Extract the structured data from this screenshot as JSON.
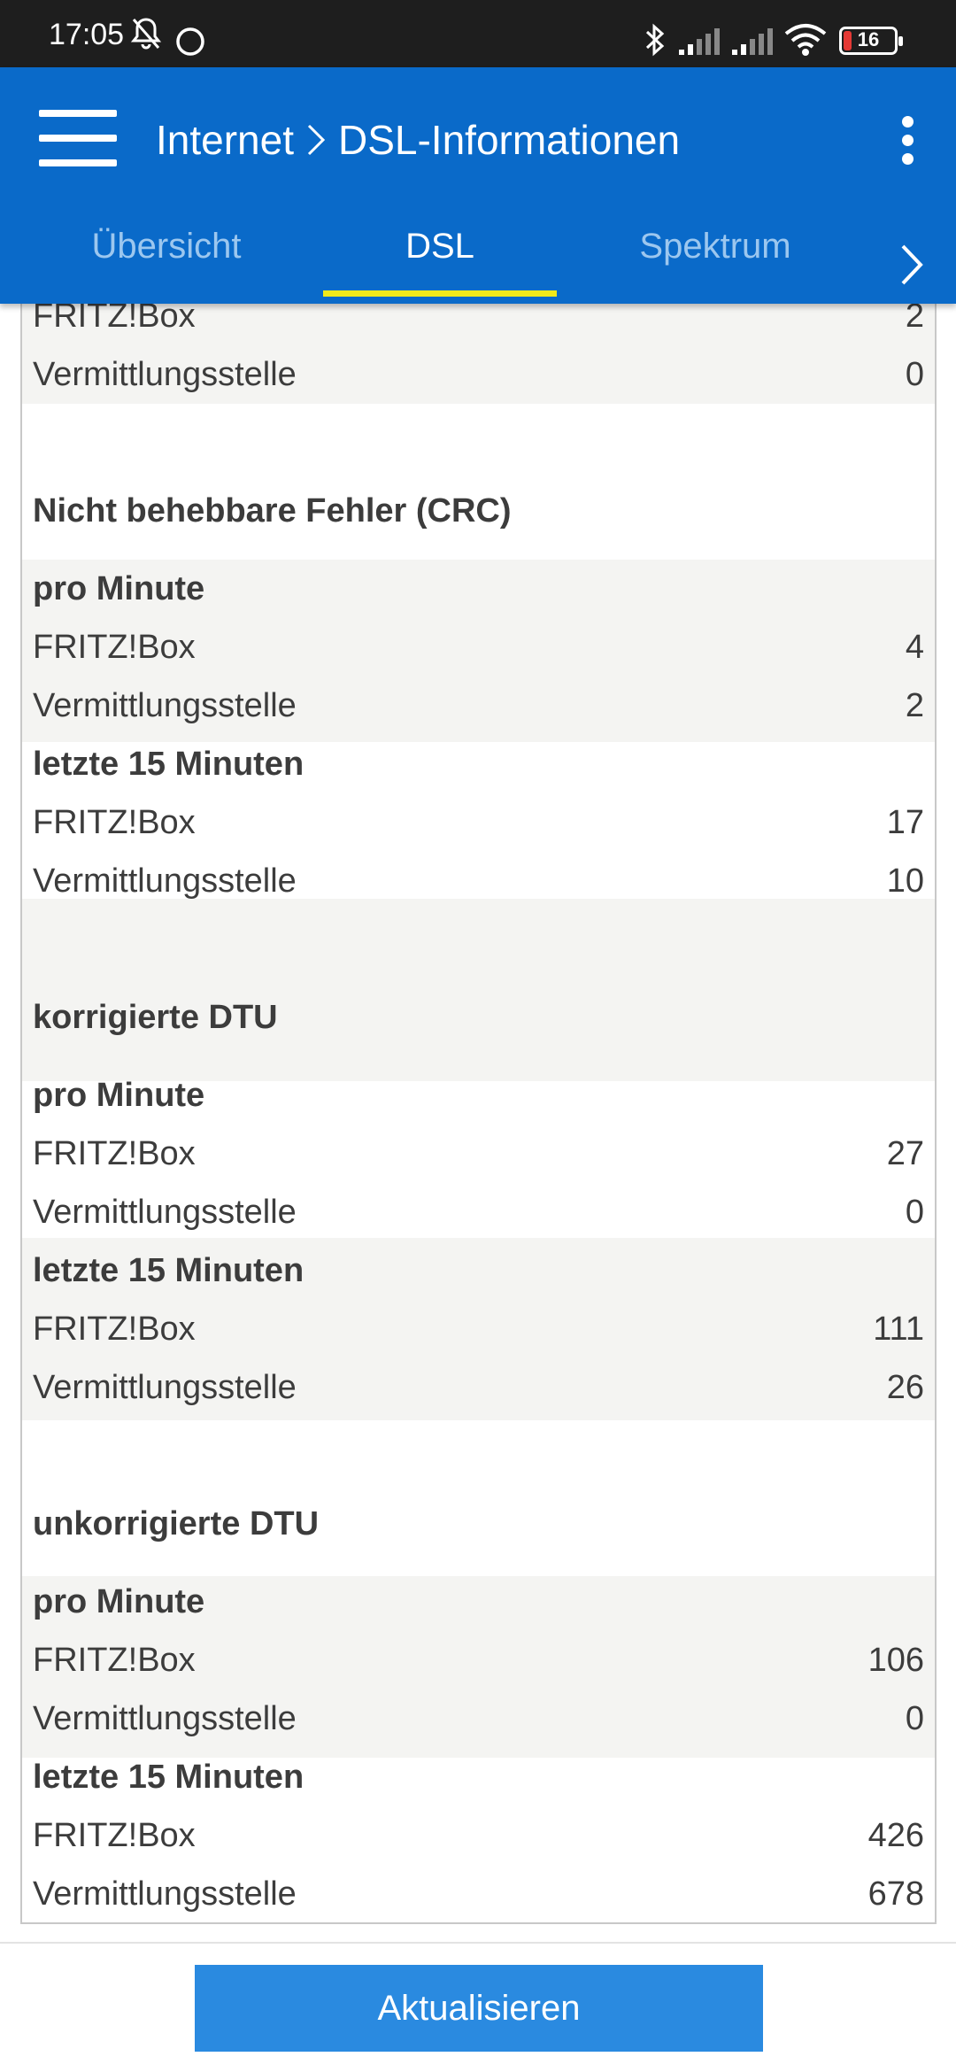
{
  "status_bar": {
    "time": "17:05",
    "battery_level": "16",
    "icons": [
      "bell-off-icon",
      "circle-icon",
      "bluetooth-icon",
      "signal-icon",
      "signal-icon",
      "wifi-icon",
      "battery-icon"
    ]
  },
  "header": {
    "breadcrumb_parent": "Internet",
    "breadcrumb_current": "DSL-Informationen"
  },
  "tabs": [
    {
      "label": "Übersicht",
      "active": false
    },
    {
      "label": "DSL",
      "active": true
    },
    {
      "label": "Spektrum",
      "active": false
    }
  ],
  "rows": [
    {
      "label": "FRITZ!Box",
      "value": "2"
    },
    {
      "label": "Vermittlungsstelle",
      "value": "0"
    },
    {
      "label": "Nicht behebbare Fehler (CRC)",
      "value": ""
    },
    {
      "label": "pro Minute",
      "value": ""
    },
    {
      "label": "FRITZ!Box",
      "value": "4"
    },
    {
      "label": "Vermittlungsstelle",
      "value": "2"
    },
    {
      "label": "letzte 15 Minuten",
      "value": ""
    },
    {
      "label": "FRITZ!Box",
      "value": "17"
    },
    {
      "label": "Vermittlungsstelle",
      "value": "10"
    },
    {
      "label": "korrigierte DTU",
      "value": ""
    },
    {
      "label": "pro Minute",
      "value": ""
    },
    {
      "label": "FRITZ!Box",
      "value": "27"
    },
    {
      "label": "Vermittlungsstelle",
      "value": "0"
    },
    {
      "label": "letzte 15 Minuten",
      "value": ""
    },
    {
      "label": "FRITZ!Box",
      "value": "111"
    },
    {
      "label": "Vermittlungsstelle",
      "value": "26"
    },
    {
      "label": "unkorrigierte DTU",
      "value": ""
    },
    {
      "label": "pro Minute",
      "value": ""
    },
    {
      "label": "FRITZ!Box",
      "value": "106"
    },
    {
      "label": "Vermittlungsstelle",
      "value": "0"
    },
    {
      "label": "letzte 15 Minuten",
      "value": ""
    },
    {
      "label": "FRITZ!Box",
      "value": "426"
    },
    {
      "label": "Vermittlungsstelle",
      "value": "678"
    }
  ],
  "footer": {
    "refresh_label": "Aktualisieren"
  },
  "colors": {
    "header_blue": "#0a6ac9",
    "tab_indicator": "#f2ea1a",
    "button_blue": "#2a8ae0",
    "band_gray": "#f4f4f2"
  }
}
